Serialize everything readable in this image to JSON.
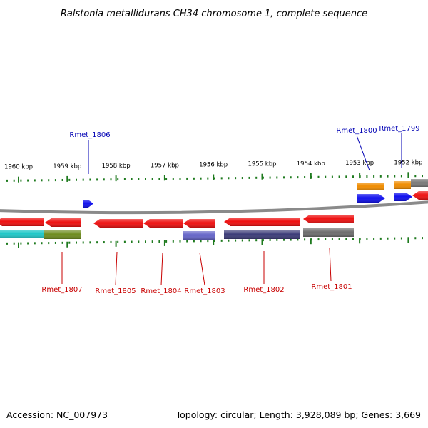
{
  "title": "Ralstonia metallidurans CH34 chromosome 1, complete sequence",
  "footer": {
    "accession": "Accession: NC_007973",
    "stats": "Topology: circular; Length: 3,928,089 bp; Genes: 3,669"
  },
  "colors": {
    "backbone": "#8a8a8a",
    "tick": "#1e7a1e",
    "label_blue": "#0000b4",
    "label_red": "#c80000"
  },
  "scale_ticks": [
    {
      "label": "1960 kbp",
      "kbp": 1960
    },
    {
      "label": "1959 kbp",
      "kbp": 1959
    },
    {
      "label": "1958 kbp",
      "kbp": 1958
    },
    {
      "label": "1957 kbp",
      "kbp": 1957
    },
    {
      "label": "1956 kbp",
      "kbp": 1956
    },
    {
      "label": "1955 kbp",
      "kbp": 1955
    },
    {
      "label": "1954 kbp",
      "kbp": 1954
    },
    {
      "label": "1953 kbp",
      "kbp": 1953
    },
    {
      "label": "1952 kbp",
      "kbp": 1952
    }
  ],
  "genes": [
    {
      "name": "Rmet_1807",
      "strand": "-",
      "color": "#ee1111",
      "labeled": true
    },
    {
      "name": "Rmet_1806",
      "strand": "+",
      "color": "#1111ee",
      "labeled": true
    },
    {
      "name": "Rmet_1805",
      "strand": "-",
      "color": "#ee1111",
      "labeled": true
    },
    {
      "name": "Rmet_1804",
      "strand": "-",
      "color": "#ee1111",
      "labeled": true
    },
    {
      "name": "Rmet_1803",
      "strand": "-",
      "color": "#ee1111",
      "labeled": true
    },
    {
      "name": "Rmet_1802",
      "strand": "-",
      "color": "#ee1111",
      "labeled": true
    },
    {
      "name": "Rmet_1801",
      "strand": "-",
      "color": "#ee1111",
      "labeled": true
    },
    {
      "name": "Rmet_1800",
      "strand": "+",
      "color": "#1111ee",
      "labeled": true
    },
    {
      "name": "Rmet_1799",
      "strand": "+",
      "color": "#1111ee",
      "labeled": true
    },
    {
      "name": "",
      "strand": "-",
      "color": "#ee1111",
      "labeled": false
    }
  ],
  "feature_bands": [
    {
      "colors": [
        "#20c8c8",
        "#6e8c1e"
      ]
    },
    {
      "colors": [
        "#6464c8"
      ]
    },
    {
      "colors": [
        "#3c3c78"
      ]
    },
    {
      "colors": [
        "#6e6e6e"
      ]
    },
    {
      "colors": [
        "#f08c00"
      ]
    },
    {
      "colors": [
        "#f08c00",
        "#7a7a7a"
      ]
    }
  ]
}
